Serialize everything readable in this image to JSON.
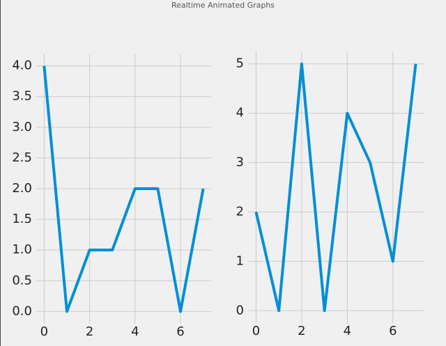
{
  "window_title": "Realtime Animated Graphs",
  "chart_data": [
    {
      "type": "line",
      "x": [
        0,
        1,
        2,
        3,
        4,
        5,
        6,
        7
      ],
      "series": [
        {
          "color": "#008fd5",
          "values": [
            4,
            0,
            1,
            1,
            2,
            2,
            0,
            2
          ]
        }
      ],
      "xlim": [
        -0.35,
        7.35
      ],
      "xticks": [
        0,
        2,
        4,
        6
      ],
      "ylim": [
        -0.2,
        4.2
      ],
      "yticks": [
        {
          "value": 0,
          "label": "0.0"
        },
        {
          "value": 0.5,
          "label": "0.5"
        },
        {
          "value": 1,
          "label": "1.0"
        },
        {
          "value": 1.5,
          "label": "1.5"
        },
        {
          "value": 2,
          "label": "2.0"
        },
        {
          "value": 2.5,
          "label": "2.5"
        },
        {
          "value": 3,
          "label": "3.0"
        },
        {
          "value": 3.5,
          "label": "3.5"
        },
        {
          "value": 4,
          "label": "4.0"
        }
      ],
      "grid": true
    },
    {
      "type": "line",
      "x": [
        0,
        1,
        2,
        3,
        4,
        5,
        6,
        7
      ],
      "series": [
        {
          "color": "#008fd5",
          "values": [
            2,
            0,
            5,
            0,
            4,
            3,
            1,
            5
          ]
        }
      ],
      "xlim": [
        -0.35,
        7.35
      ],
      "xticks": [
        0,
        2,
        4,
        6
      ],
      "ylim": [
        -0.25,
        5.25
      ],
      "yticks": [
        0,
        1,
        2,
        3,
        4,
        5
      ],
      "grid": true
    }
  ]
}
